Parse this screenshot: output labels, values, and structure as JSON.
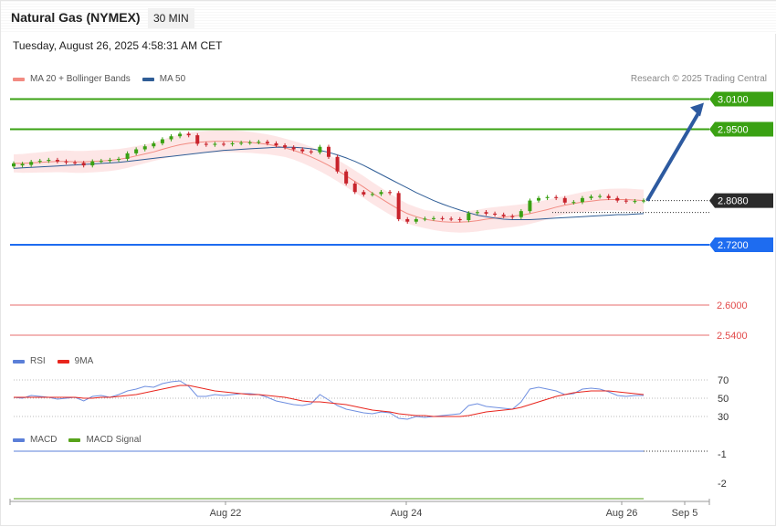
{
  "header": {
    "title": "Natural Gas (NYMEX)",
    "timeframe": "30 MIN",
    "timestamp": "Tuesday, August 26, 2025 4:58:31 AM CET",
    "credit": "Research © 2025 Trading Central"
  },
  "legends": {
    "price": [
      "MA 20 + Bollinger Bands",
      "MA 50"
    ],
    "rsi": [
      "RSI",
      "9MA"
    ],
    "macd": [
      "MACD",
      "MACD Signal"
    ]
  },
  "colors": {
    "up": "#3aa113",
    "down": "#c8232c",
    "ma20": "#f28b82",
    "bollinger_fill": "#fde2e2",
    "ma50": "#2f5d96",
    "resistance": "#3aa113",
    "support_blue": "#1e6cf0",
    "support_red": "#e24a4a",
    "current_label": "#2b2b2b",
    "rsi": "#6f8fe0",
    "rsi_ma": "#e8251d",
    "macd": "#5b7fd8",
    "macd_signal": "#57a31a",
    "arrow": "#2d5aa0"
  },
  "chart_data": {
    "type": "candlestick",
    "x_tick_labels": [
      "Aug 22",
      "Aug 24",
      "Aug 26",
      "Sep 5"
    ],
    "price": {
      "ylim": [
        2.52,
        3.06
      ],
      "closes": [
        2.882,
        2.881,
        2.885,
        2.887,
        2.889,
        2.886,
        2.884,
        2.883,
        2.878,
        2.886,
        2.887,
        2.889,
        2.891,
        2.902,
        2.91,
        2.916,
        2.922,
        2.93,
        2.936,
        2.941,
        2.938,
        2.921,
        2.919,
        2.921,
        2.92,
        2.922,
        2.923,
        2.924,
        2.925,
        2.922,
        2.918,
        2.914,
        2.91,
        2.906,
        2.904,
        2.915,
        2.895,
        2.866,
        2.842,
        2.825,
        2.82,
        2.821,
        2.825,
        2.823,
        2.771,
        2.766,
        2.771,
        2.772,
        2.773,
        2.772,
        2.771,
        2.769,
        2.783,
        2.785,
        2.782,
        2.78,
        2.777,
        2.775,
        2.787,
        2.808,
        2.813,
        2.815,
        2.813,
        2.804,
        2.805,
        2.813,
        2.816,
        2.817,
        2.813,
        2.808,
        2.806,
        2.807,
        2.808
      ],
      "opens": [
        2.876,
        2.878,
        2.879,
        2.886,
        2.887,
        2.889,
        2.886,
        2.884,
        2.883,
        2.878,
        2.886,
        2.887,
        2.889,
        2.891,
        2.902,
        2.91,
        2.916,
        2.922,
        2.93,
        2.936,
        2.941,
        2.938,
        2.921,
        2.919,
        2.921,
        2.92,
        2.922,
        2.923,
        2.924,
        2.925,
        2.922,
        2.918,
        2.914,
        2.91,
        2.906,
        2.904,
        2.915,
        2.895,
        2.866,
        2.842,
        2.825,
        2.82,
        2.821,
        2.825,
        2.823,
        2.771,
        2.766,
        2.771,
        2.772,
        2.773,
        2.772,
        2.771,
        2.769,
        2.783,
        2.785,
        2.782,
        2.78,
        2.777,
        2.775,
        2.787,
        2.808,
        2.813,
        2.815,
        2.813,
        2.804,
        2.805,
        2.813,
        2.816,
        2.817,
        2.813,
        2.808,
        2.806,
        2.807
      ],
      "current": 2.808,
      "levels": [
        {
          "value": "3.0100",
          "kind": "resistance"
        },
        {
          "value": "2.9500",
          "kind": "resistance"
        },
        {
          "value": "2.8080",
          "kind": "current"
        },
        {
          "value": "2.7200",
          "kind": "support_blue"
        },
        {
          "value": "2.6000",
          "kind": "support_red"
        },
        {
          "value": "2.5400",
          "kind": "support_red"
        }
      ],
      "ma20": [
        2.882,
        2.882,
        2.883,
        2.884,
        2.885,
        2.886,
        2.886,
        2.885,
        2.885,
        2.886,
        2.887,
        2.888,
        2.89,
        2.893,
        2.897,
        2.901,
        2.905,
        2.91,
        2.915,
        2.919,
        2.922,
        2.924,
        2.925,
        2.926,
        2.926,
        2.926,
        2.925,
        2.924,
        2.922,
        2.92,
        2.917,
        2.913,
        2.908,
        2.902,
        2.895,
        2.887,
        2.878,
        2.868,
        2.857,
        2.846,
        2.835,
        2.823,
        2.812,
        2.801,
        2.791,
        2.782,
        2.776,
        2.771,
        2.768,
        2.766,
        2.765,
        2.765,
        2.766,
        2.768,
        2.771,
        2.773,
        2.775,
        2.777,
        2.779,
        2.782,
        2.786,
        2.79,
        2.795,
        2.799,
        2.802,
        2.805,
        2.807,
        2.809,
        2.81,
        2.81,
        2.81,
        2.809,
        2.808
      ],
      "ma50": [
        2.872,
        2.873,
        2.874,
        2.875,
        2.876,
        2.877,
        2.878,
        2.879,
        2.88,
        2.881,
        2.882,
        2.883,
        2.884,
        2.886,
        2.888,
        2.89,
        2.892,
        2.894,
        2.896,
        2.898,
        2.9,
        2.902,
        2.904,
        2.906,
        2.908,
        2.909,
        2.91,
        2.911,
        2.912,
        2.913,
        2.914,
        2.914,
        2.914,
        2.913,
        2.911,
        2.908,
        2.904,
        2.899,
        2.893,
        2.886,
        2.878,
        2.869,
        2.86,
        2.851,
        2.842,
        2.833,
        2.824,
        2.816,
        2.808,
        2.801,
        2.795,
        2.789,
        2.784,
        2.779,
        2.776,
        2.773,
        2.771,
        2.77,
        2.77,
        2.77,
        2.771,
        2.772,
        2.773,
        2.774,
        2.775,
        2.776,
        2.777,
        2.778,
        2.779,
        2.78,
        2.78,
        2.781,
        2.782
      ],
      "projection": {
        "from": 2.808,
        "to": 3.01
      }
    },
    "rsi": {
      "ylim": [
        20,
        80
      ],
      "tick_labels": [
        "70",
        "50",
        "30"
      ],
      "values": [
        51,
        50,
        53,
        52,
        51,
        49,
        50,
        51,
        47,
        52,
        53,
        51,
        54,
        58,
        60,
        63,
        62,
        66,
        68,
        69,
        63,
        52,
        52,
        54,
        53,
        54,
        55,
        55,
        54,
        51,
        47,
        45,
        43,
        42,
        44,
        54,
        48,
        42,
        38,
        36,
        34,
        33,
        35,
        34,
        28,
        27,
        30,
        29,
        30,
        31,
        32,
        33,
        42,
        44,
        41,
        40,
        39,
        38,
        46,
        60,
        62,
        60,
        58,
        54,
        55,
        60,
        61,
        60,
        57,
        53,
        52,
        53,
        53
      ],
      "ma": [
        51,
        51,
        51,
        51,
        51,
        51,
        51,
        51,
        50,
        50,
        51,
        51,
        52,
        53,
        54,
        56,
        58,
        60,
        62,
        64,
        64,
        62,
        60,
        58,
        57,
        56,
        55,
        54,
        54,
        53,
        52,
        51,
        49,
        47,
        46,
        46,
        45,
        44,
        43,
        41,
        39,
        37,
        36,
        35,
        33,
        32,
        31,
        31,
        30,
        30,
        30,
        30,
        31,
        33,
        35,
        36,
        37,
        38,
        40,
        43,
        46,
        49,
        52,
        54,
        56,
        57,
        58,
        58,
        58,
        57,
        56,
        55,
        54
      ]
    },
    "macd": {
      "tick_labels": [
        "-1",
        "-2"
      ],
      "note": "MACD panel shown near zero line"
    }
  }
}
